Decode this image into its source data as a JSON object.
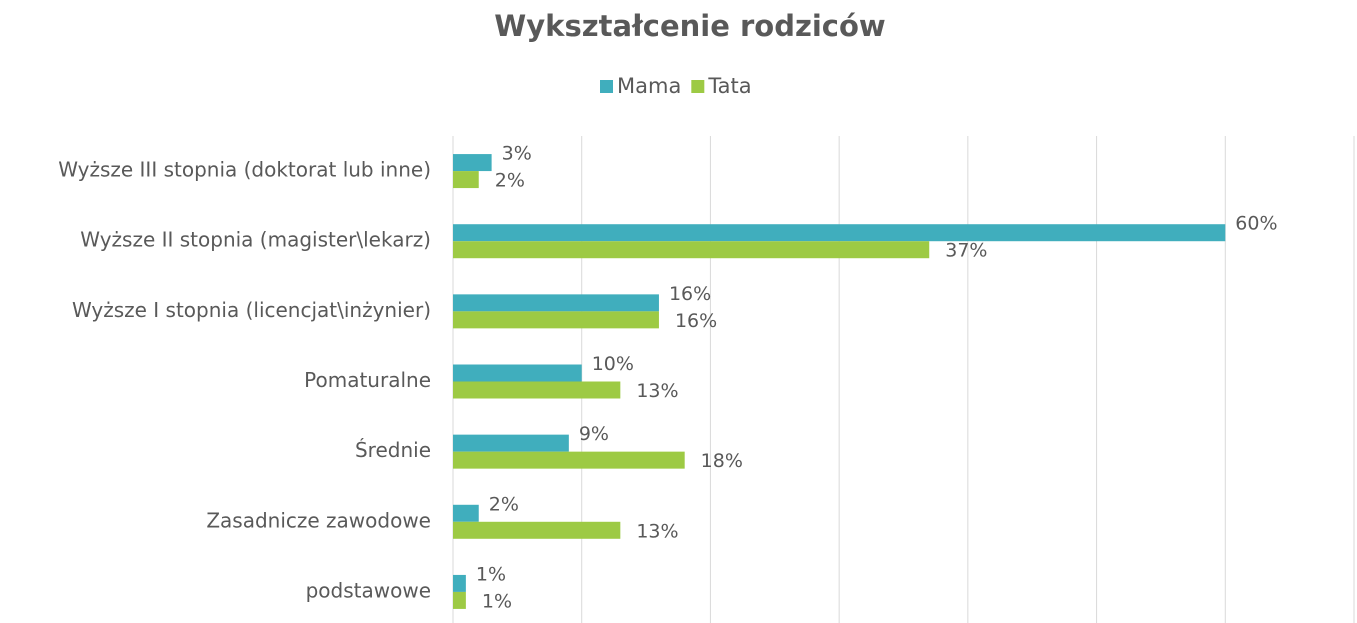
{
  "chart_data": {
    "type": "bar",
    "orientation": "horizontal",
    "title": "Wykształcenie rodziców",
    "categories": [
      "Wyższe III stopnia (doktorat lub inne)",
      "Wyższe II stopnia (magister\\lekarz)",
      "Wyższe I stopnia (licencjat\\inżynier)",
      "Pomaturalne",
      "Średnie",
      "Zasadnicze zawodowe",
      "podstawowe"
    ],
    "series": [
      {
        "name": "Mama",
        "color": "#40aebd",
        "values": [
          3,
          60,
          16,
          10,
          9,
          2,
          1
        ],
        "value_labels": [
          "3%",
          "60%",
          "16%",
          "10%",
          "9%",
          "2%",
          "1%"
        ]
      },
      {
        "name": "Tata",
        "color": "#9dca44",
        "values": [
          2,
          37,
          16,
          13,
          18,
          13,
          1
        ],
        "value_labels": [
          "2%",
          "37%",
          "16%",
          "13%",
          "18%",
          "13%",
          "1%"
        ]
      }
    ],
    "xlim": [
      0,
      70
    ],
    "xticks": [
      0,
      10,
      20,
      30,
      40,
      50,
      60,
      70
    ],
    "grid": true,
    "legend": "top"
  }
}
